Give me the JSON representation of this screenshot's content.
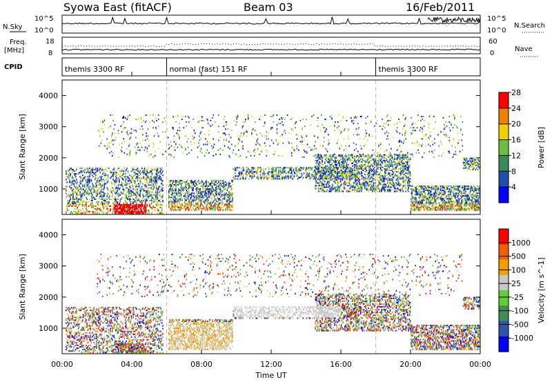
{
  "title": {
    "left": "Syowa East (fitACF)",
    "center": "Beam 03",
    "right": "16/Feb/2011"
  },
  "header_panels": {
    "nsky": {
      "label": "N.Sky",
      "ticks": [
        "10^5",
        "10^0"
      ],
      "right_label": "N.Search",
      "right_ticks": [
        "10^5",
        "10^0"
      ]
    },
    "freq": {
      "label": "Freq.",
      "unit": "[MHz]",
      "ticks": [
        "18",
        "8"
      ],
      "right_label": "Nave",
      "right_ticks": [
        "60",
        "0"
      ]
    },
    "cpid": {
      "label": "CPID",
      "modes": [
        {
          "label": "themis 3300 RF",
          "start_hour": 0
        },
        {
          "label": "normal (fast) 151 RF",
          "start_hour": 6
        },
        {
          "label": "themis 3300 RF",
          "start_hour": 18
        }
      ]
    }
  },
  "chart_data": [
    {
      "type": "heatmap",
      "title": "",
      "xlabel": "",
      "ylabel": "Slant Range [km]",
      "x_range": [
        "00:00",
        "24:00"
      ],
      "ylim": [
        180,
        4500
      ],
      "yticks": [
        "1000",
        "2000",
        "3000",
        "4000"
      ],
      "colorbar": {
        "label": "Power [dB]",
        "ticks": [
          "4",
          "8",
          "12",
          "16",
          "20",
          "24",
          "28"
        ],
        "colors": [
          "#0000ff",
          "#1f4fa8",
          "#3a8a58",
          "#6cc040",
          "#f0d000",
          "#f08000",
          "#ff0000"
        ]
      },
      "annotations": [
        "Scatter mostly 200-1700 km; sparse echoes to 3400 km; strong (red) near 04:00 at ~300 km"
      ]
    },
    {
      "type": "heatmap",
      "title": "",
      "xlabel": "Time UT",
      "ylabel": "Slant Range [km]",
      "x_range": [
        "00:00",
        "24:00"
      ],
      "ylim": [
        180,
        4500
      ],
      "yticks": [
        "1000",
        "2000",
        "3000",
        "4000"
      ],
      "xticks": [
        "00:00",
        "04:00",
        "08:00",
        "12:00",
        "16:00",
        "20:00",
        "00:00"
      ],
      "colorbar": {
        "label": "Velocity [m s^-1]",
        "ticks": [
          "1000",
          "500",
          "100",
          "25",
          "-25",
          "-100",
          "-500",
          "-1000"
        ],
        "colors": [
          "#0000ff",
          "#2d56a8",
          "#3f8f55",
          "#66cc33",
          "#c8c8c8",
          "#f0a000",
          "#f06000",
          "#ff0000"
        ]
      }
    }
  ],
  "x_axis": {
    "label": "Time UT",
    "ticks": [
      "00:00",
      "04:00",
      "08:00",
      "12:00",
      "16:00",
      "20:00",
      "00:00"
    ]
  }
}
